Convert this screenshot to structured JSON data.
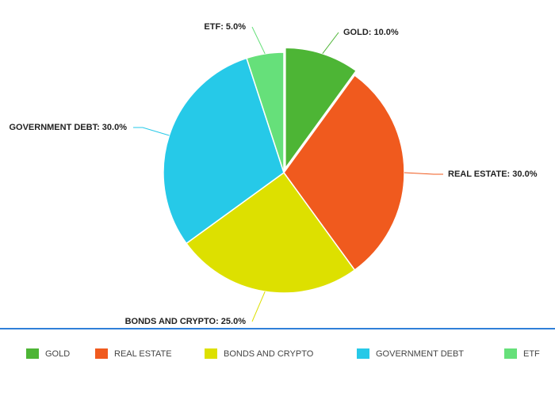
{
  "chart_data": {
    "type": "pie",
    "categories": [
      "GOLD",
      "REAL ESTATE",
      "BONDS AND CRYPTO",
      "GOVERNMENT DEBT",
      "ETF"
    ],
    "values": [
      10,
      30,
      25,
      30,
      5
    ],
    "value_labels": [
      "GOLD: 10.0%",
      "REAL ESTATE: 30.0%",
      "BONDS AND CRYPTO: 25.0%",
      "GOVERNMENT DEBT: 30.0%",
      "ETF: 5.0%"
    ],
    "colors": [
      "#4db535",
      "#f05a1e",
      "#dde000",
      "#26c9e8",
      "#66e07a"
    ],
    "legend": "bottom"
  }
}
